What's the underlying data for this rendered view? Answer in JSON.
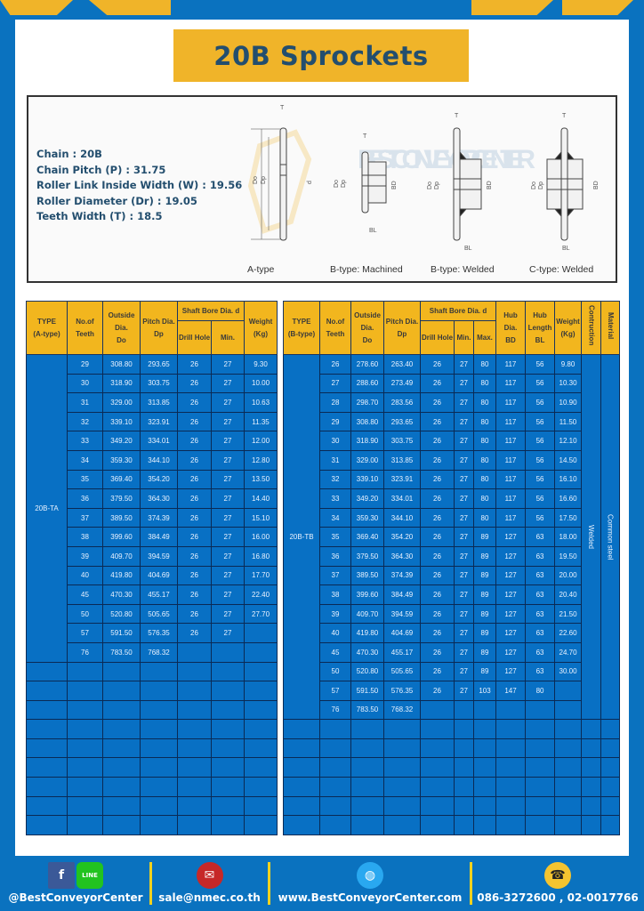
{
  "title": "20B Sprockets",
  "colors": {
    "brand_blue": "#0a72bf",
    "brand_yellow": "#f0b429",
    "title_text": "#234e6e",
    "table_blue": "#0870c4"
  },
  "specs": [
    "Chain  : 20B",
    "Chain Pitch (P)  :  31.75",
    "Roller Link Inside Width (W)  :  19.56",
    "Roller Diameter (Dr) : 19.05",
    "Teeth Width (T)  :  18.5"
  ],
  "diagram": {
    "types": [
      "A-type",
      "B-type: Machined",
      "B-type: Welded",
      "C-type: Welded"
    ],
    "dims": {
      "T": "T",
      "Do": "Do",
      "Dp": "Dp",
      "d": "d",
      "BD": "BD",
      "BL": "BL"
    },
    "watermark": "BEST CONVEYOR CENTER"
  },
  "table_a": {
    "headers": {
      "type": "TYPE",
      "type_sub": "(A-type)",
      "teeth": "No.of",
      "teeth_sub": "Teeth",
      "do": "Outside",
      "do_sub": "Dia.",
      "do_sub2": "Do",
      "dp": "Pitch Dia.",
      "dp_sub": "Dp",
      "bore": "Shaft Bore Dia. d",
      "drill": "Drill Hole",
      "min": "Min.",
      "weight": "Weight",
      "weight_sub": "(Kg)"
    },
    "type_label": "20B-TA",
    "rows": [
      [
        "29",
        "308.80",
        "293.65",
        "26",
        "27",
        "9.30"
      ],
      [
        "30",
        "318.90",
        "303.75",
        "26",
        "27",
        "10.00"
      ],
      [
        "31",
        "329.00",
        "313.85",
        "26",
        "27",
        "10.63"
      ],
      [
        "32",
        "339.10",
        "323.91",
        "26",
        "27",
        "11.35"
      ],
      [
        "33",
        "349.20",
        "334.01",
        "26",
        "27",
        "12.00"
      ],
      [
        "34",
        "359.30",
        "344.10",
        "26",
        "27",
        "12.80"
      ],
      [
        "35",
        "369.40",
        "354.20",
        "26",
        "27",
        "13.50"
      ],
      [
        "36",
        "379.50",
        "364.30",
        "26",
        "27",
        "14.40"
      ],
      [
        "37",
        "389.50",
        "374.39",
        "26",
        "27",
        "15.10"
      ],
      [
        "38",
        "399.60",
        "384.49",
        "26",
        "27",
        "16.00"
      ],
      [
        "39",
        "409.70",
        "394.59",
        "26",
        "27",
        "16.80"
      ],
      [
        "40",
        "419.80",
        "404.69",
        "26",
        "27",
        "17.70"
      ],
      [
        "45",
        "470.30",
        "455.17",
        "26",
        "27",
        "22.40"
      ],
      [
        "50",
        "520.80",
        "505.65",
        "26",
        "27",
        "27.70"
      ],
      [
        "57",
        "591.50",
        "576.35",
        "26",
        "27",
        ""
      ],
      [
        "76",
        "783.50",
        "768.32",
        "",
        "",
        ""
      ]
    ]
  },
  "table_b": {
    "headers": {
      "type": "TYPE",
      "type_sub": "(B-type)",
      "teeth": "No.of",
      "teeth_sub": "Teeth",
      "do": "Outside",
      "do_sub": "Dia.",
      "do_sub2": "Do",
      "dp": "Pitch Dia.",
      "dp_sub": "Dp",
      "bore": "Shaft Bore Dia. d",
      "drill": "Drill Hole",
      "min": "Min.",
      "max": "Max.",
      "bd": "Hub Dia.",
      "bd_sub": "BD",
      "bl": "Hub",
      "bl_sub": "Length",
      "bl_sub2": "BL",
      "weight": "Weight",
      "weight_sub": "(Kg)",
      "construction": "Contruction",
      "material": "Material"
    },
    "type_label": "20B-TB",
    "construction": "Welded",
    "material": "Common  steel",
    "rows": [
      [
        "26",
        "278.60",
        "263.40",
        "26",
        "27",
        "80",
        "117",
        "56",
        "9.80"
      ],
      [
        "27",
        "288.60",
        "273.49",
        "26",
        "27",
        "80",
        "117",
        "56",
        "10.30"
      ],
      [
        "28",
        "298.70",
        "283.56",
        "26",
        "27",
        "80",
        "117",
        "56",
        "10.90"
      ],
      [
        "29",
        "308.80",
        "293.65",
        "26",
        "27",
        "80",
        "117",
        "56",
        "11.50"
      ],
      [
        "30",
        "318.90",
        "303.75",
        "26",
        "27",
        "80",
        "117",
        "56",
        "12.10"
      ],
      [
        "31",
        "329.00",
        "313.85",
        "26",
        "27",
        "80",
        "117",
        "56",
        "14.50"
      ],
      [
        "32",
        "339.10",
        "323.91",
        "26",
        "27",
        "80",
        "117",
        "56",
        "16.10"
      ],
      [
        "33",
        "349.20",
        "334.01",
        "26",
        "27",
        "80",
        "117",
        "56",
        "16.60"
      ],
      [
        "34",
        "359.30",
        "344.10",
        "26",
        "27",
        "80",
        "117",
        "56",
        "17.50"
      ],
      [
        "35",
        "369.40",
        "354.20",
        "26",
        "27",
        "89",
        "127",
        "63",
        "18.00"
      ],
      [
        "36",
        "379.50",
        "364.30",
        "26",
        "27",
        "89",
        "127",
        "63",
        "19.50"
      ],
      [
        "37",
        "389.50",
        "374.39",
        "26",
        "27",
        "89",
        "127",
        "63",
        "20.00"
      ],
      [
        "38",
        "399.60",
        "384.49",
        "26",
        "27",
        "89",
        "127",
        "63",
        "20.40"
      ],
      [
        "39",
        "409.70",
        "394.59",
        "26",
        "27",
        "89",
        "127",
        "63",
        "21.50"
      ],
      [
        "40",
        "419.80",
        "404.69",
        "26",
        "27",
        "89",
        "127",
        "63",
        "22.60"
      ],
      [
        "45",
        "470.30",
        "455.17",
        "26",
        "27",
        "89",
        "127",
        "63",
        "24.70"
      ],
      [
        "50",
        "520.80",
        "505.65",
        "26",
        "27",
        "89",
        "127",
        "63",
        "30.00"
      ],
      [
        "57",
        "591.50",
        "576.35",
        "26",
        "27",
        "103",
        "147",
        "80",
        ""
      ],
      [
        "76",
        "783.50",
        "768.32",
        "",
        "",
        "",
        "",
        "",
        ""
      ]
    ]
  },
  "footer": {
    "social": "@BestConveyorCenter",
    "social_icons": [
      "facebook-icon",
      "line-icon"
    ],
    "line_label": "LINE",
    "email": "sale@nmec.co.th",
    "website": "www.BestConveyorCenter.com",
    "phone": "086-3272600 , 02-0017766"
  }
}
